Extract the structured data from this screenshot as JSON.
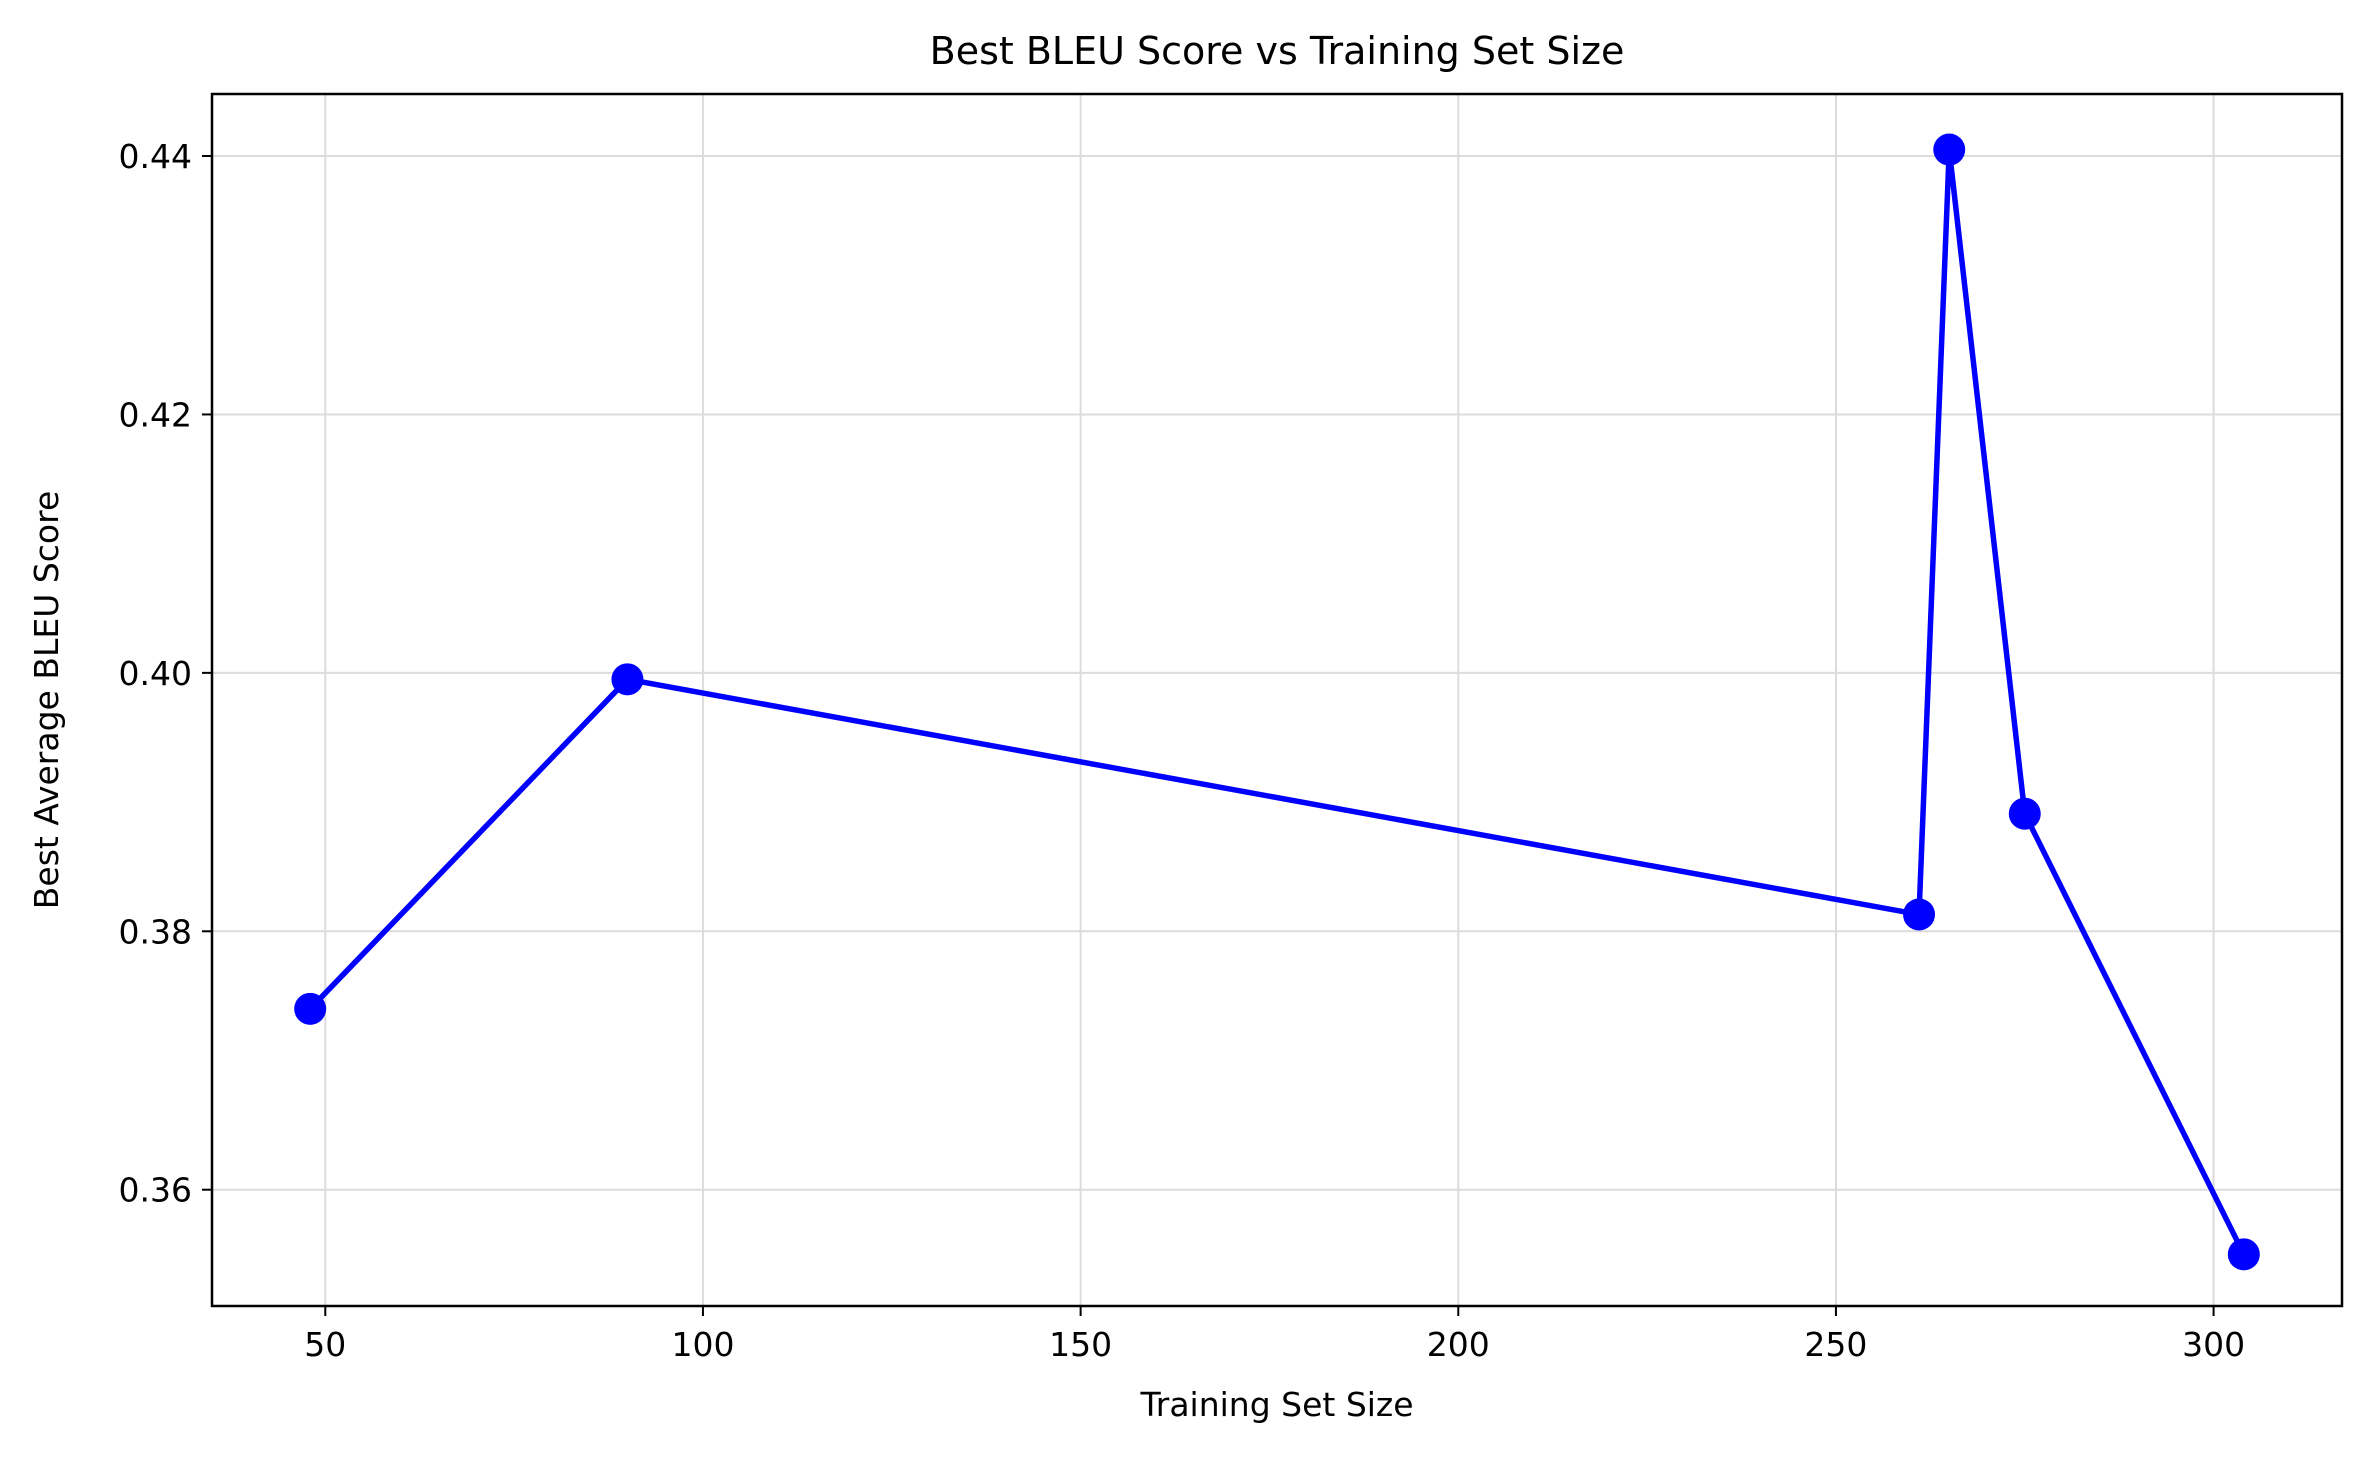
{
  "chart_data": {
    "type": "line",
    "title": "Best BLEU Score vs Training Set Size",
    "xlabel": "Training Set Size",
    "ylabel": "Best Average BLEU Score",
    "xlim": [
      35,
      317
    ],
    "ylim": [
      0.351,
      0.4448
    ],
    "xticks": [
      50,
      100,
      150,
      200,
      250,
      300
    ],
    "yticks": [
      0.36,
      0.38,
      0.4,
      0.42,
      0.44
    ],
    "ytick_labels": [
      "0.36",
      "0.38",
      "0.40",
      "0.42",
      "0.44"
    ],
    "grid": true,
    "legend": "none",
    "series": [
      {
        "color": "#0000ff",
        "marker": "circle",
        "x": [
          48,
          90,
          261,
          265,
          275,
          304
        ],
        "y": [
          0.374,
          0.3995,
          0.3813,
          0.4405,
          0.3891,
          0.355
        ]
      }
    ]
  }
}
